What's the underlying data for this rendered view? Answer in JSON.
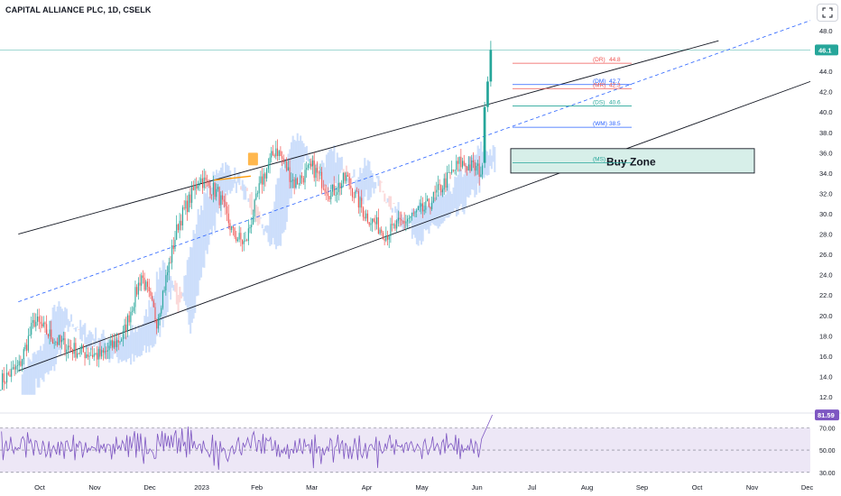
{
  "header": {
    "title": "CAPITAL ALLIANCE PLC, 1D, CSELK"
  },
  "colors": {
    "up": "#26a69a",
    "down": "#ef5350",
    "cloud_up": "#c9dcfb",
    "cloud_down": "#fbd5d5",
    "channel": "#131722",
    "midline": "#2962ff",
    "price_line": "#26a69a",
    "rsi_line": "#7e57c2",
    "rsi_band": "#ede7f6",
    "buy_zone_fill": "#d7efe9",
    "pivot_red": "#ef5350",
    "pivot_blue": "#2962ff",
    "pivot_green": "#26a69a"
  },
  "chart_data": {
    "type": "candlestick",
    "title": "CAPITAL ALLIANCE PLC, 1D, CSELK",
    "y_axis": {
      "range": [
        11.0,
        49.0
      ],
      "ticks": [
        "48.0",
        "44.0",
        "42.0",
        "40.0",
        "38.0",
        "36.0",
        "34.0",
        "32.0",
        "30.0",
        "28.0",
        "26.0",
        "24.0",
        "22.0",
        "20.0",
        "18.0",
        "16.0",
        "14.0",
        "12.0"
      ],
      "tick_values": [
        48,
        44,
        42,
        40,
        38,
        36,
        34,
        32,
        30,
        28,
        26,
        24,
        22,
        20,
        18,
        16,
        14,
        12
      ]
    },
    "x_axis": {
      "labels": [
        "Oct",
        "Nov",
        "Dec",
        "2023",
        "Feb",
        "Mar",
        "Apr",
        "May",
        "Jun",
        "Jul",
        "Aug",
        "Sep",
        "Oct",
        "Nov",
        "Dec"
      ],
      "label_index": [
        0,
        36,
        72,
        106,
        142,
        178,
        214,
        250,
        286,
        322,
        358,
        394,
        430,
        466,
        502
      ],
      "total_slots": 530
    },
    "last_price": {
      "value": 46.1,
      "label": "46.1"
    },
    "segments": [
      {
        "from": 0,
        "to": 12,
        "start": 13.5,
        "end": 15.0
      },
      {
        "from": 12,
        "to": 22,
        "start": 15.0,
        "end": 19.5
      },
      {
        "from": 22,
        "to": 36,
        "start": 19.5,
        "end": 17.5
      },
      {
        "from": 36,
        "to": 50,
        "start": 17.5,
        "end": 16.5
      },
      {
        "from": 50,
        "to": 66,
        "start": 16.5,
        "end": 16.0
      },
      {
        "from": 66,
        "to": 80,
        "start": 16.0,
        "end": 18.0
      },
      {
        "from": 80,
        "to": 92,
        "start": 18.0,
        "end": 24.0
      },
      {
        "from": 92,
        "to": 102,
        "start": 24.0,
        "end": 19.5
      },
      {
        "from": 102,
        "to": 116,
        "start": 19.5,
        "end": 29.0
      },
      {
        "from": 116,
        "to": 130,
        "start": 29.0,
        "end": 33.5
      },
      {
        "from": 130,
        "to": 142,
        "start": 33.5,
        "end": 32.0
      },
      {
        "from": 142,
        "to": 152,
        "start": 32.0,
        "end": 28.0
      },
      {
        "from": 152,
        "to": 160,
        "start": 28.0,
        "end": 27.0
      },
      {
        "from": 160,
        "to": 170,
        "start": 27.0,
        "end": 33.0
      },
      {
        "from": 170,
        "to": 180,
        "start": 33.0,
        "end": 36.5
      },
      {
        "from": 180,
        "to": 192,
        "start": 36.5,
        "end": 33.0
      },
      {
        "from": 192,
        "to": 204,
        "start": 33.0,
        "end": 34.5
      },
      {
        "from": 204,
        "to": 216,
        "start": 34.5,
        "end": 32.0
      },
      {
        "from": 216,
        "to": 226,
        "start": 32.0,
        "end": 33.5
      },
      {
        "from": 226,
        "to": 238,
        "start": 33.5,
        "end": 30.0
      },
      {
        "from": 238,
        "to": 252,
        "start": 30.0,
        "end": 28.0
      },
      {
        "from": 252,
        "to": 266,
        "start": 28.0,
        "end": 29.5
      },
      {
        "from": 266,
        "to": 278,
        "start": 29.5,
        "end": 30.5
      },
      {
        "from": 278,
        "to": 290,
        "start": 30.5,
        "end": 33.0
      },
      {
        "from": 290,
        "to": 300,
        "start": 33.0,
        "end": 35.0
      },
      {
        "from": 300,
        "to": 310,
        "start": 35.0,
        "end": 34.5
      },
      {
        "from": 310,
        "to": 316,
        "start": 34.5,
        "end": 34.0
      }
    ],
    "breakout_candles": [
      {
        "open": 35.0,
        "high": 41.0,
        "low": 34.5,
        "close": 40.5
      },
      {
        "open": 40.5,
        "high": 43.5,
        "low": 40.0,
        "close": 43.0
      },
      {
        "open": 43.0,
        "high": 47.0,
        "low": 42.5,
        "close": 46.1
      }
    ],
    "channel": {
      "upper": [
        {
          "x": 0,
          "y": 27.5
        },
        {
          "x": 530,
          "y": 49.5
        }
      ],
      "lower": [
        {
          "x": 0,
          "y": 13.9
        },
        {
          "x": 530,
          "y": 43.0
        }
      ],
      "mid": [
        {
          "x": 0,
          "y": 20.7
        },
        {
          "x": 530,
          "y": 49.0
        }
      ]
    },
    "pivot_levels": [
      {
        "label": "(DR)",
        "value": "44.8",
        "y": 44.8,
        "color": "red"
      },
      {
        "label": "(DM)",
        "value": "42.7",
        "y": 42.7,
        "color": "blue"
      },
      {
        "label": "(MR)",
        "value": "42.3",
        "y": 42.3,
        "color": "red"
      },
      {
        "label": "(DS)",
        "value": "40.6",
        "y": 40.6,
        "color": "green"
      },
      {
        "label": "(WM)",
        "value": "38.5",
        "y": 38.5,
        "color": "blue"
      },
      {
        "label": "(MS)",
        "value": "",
        "y": 35.0,
        "color": "green"
      }
    ],
    "buy_zone": {
      "label": "Buy Zone",
      "y_top": 36.4,
      "y_bottom": 34.0
    },
    "rsi": {
      "value": "81.59",
      "levels": [
        "70.00",
        "50.00",
        "30.00"
      ],
      "level_values": [
        70,
        50,
        30
      ]
    }
  }
}
